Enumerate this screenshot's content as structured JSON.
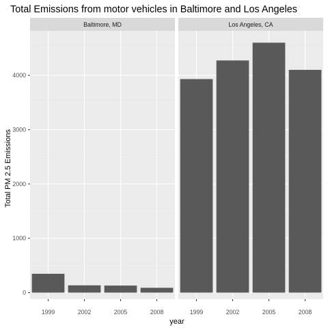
{
  "chart_data": {
    "type": "bar",
    "title": "Total Emissions from motor vehicles in Baltimore and Los Angeles",
    "xlabel": "year",
    "ylabel": "Total PM 2.5 Emissions",
    "categories": [
      "1999",
      "2002",
      "2005",
      "2008"
    ],
    "ylim": [
      -120,
      4820
    ],
    "yticks": [
      0,
      1000,
      2000,
      3000,
      4000
    ],
    "grid": true,
    "facets": [
      {
        "name": "Baltimore, MD",
        "values": [
          347,
          134,
          130,
          89
        ]
      },
      {
        "name": "Los Angeles, CA",
        "values": [
          3931,
          4274,
          4601,
          4101
        ]
      }
    ],
    "colors": {
      "bar": "#595959",
      "panel_bg": "#ebebeb",
      "strip_bg": "#d9d9d9",
      "grid_major": "#ffffff",
      "grid_minor": "#f4f4f4",
      "tick_text": "#4d4d4d",
      "text": "#000000"
    }
  }
}
